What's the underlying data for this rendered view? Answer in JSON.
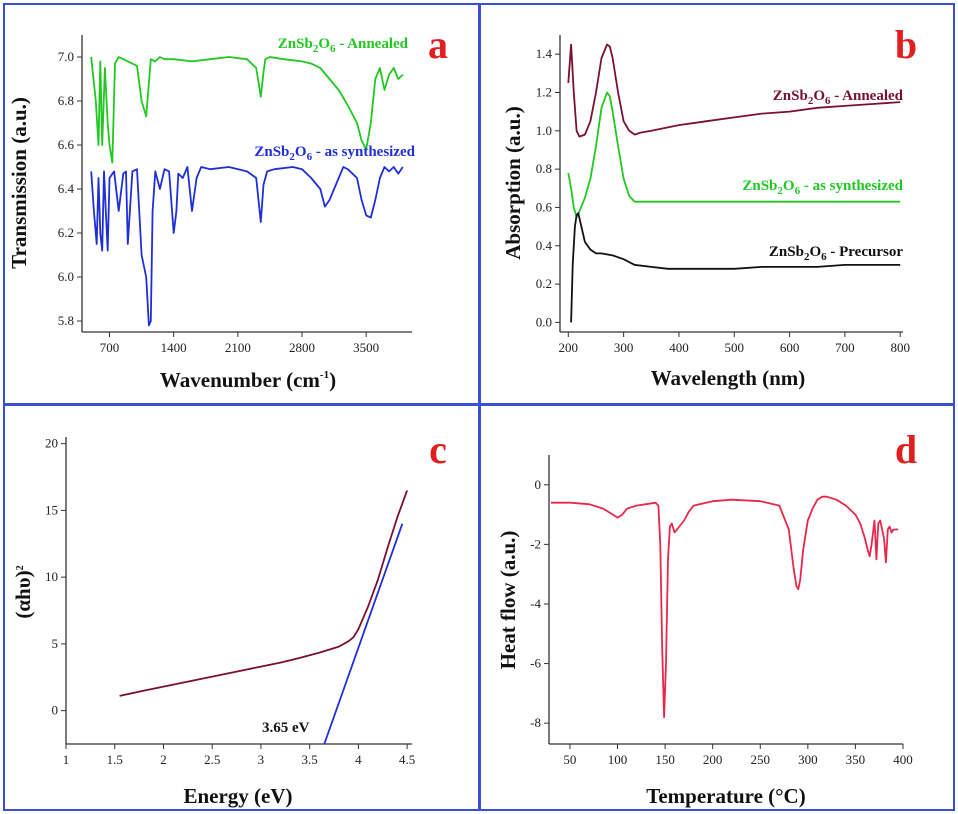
{
  "colors": {
    "border": "#3b4fd6",
    "letter": "#e02020",
    "green": "#22c722",
    "blue": "#1f2fd8",
    "maroon": "#7a1030",
    "black": "#111111",
    "red": "#e8284a"
  },
  "chart_data": [
    {
      "id": "a",
      "letter": "a",
      "type": "line",
      "xlabel": "Wavenumber (cm",
      "xlabel_sup": "-1",
      "xlabel_end": ")",
      "ylabel": "Transmission (a.u.)",
      "xlim": [
        400,
        4000
      ],
      "ylim": [
        5.75,
        7.1
      ],
      "xticks": [
        700,
        1400,
        2100,
        2800,
        3500
      ],
      "yticks": [
        5.8,
        6.0,
        6.2,
        6.4,
        6.6,
        6.8,
        7.0
      ],
      "series": [
        {
          "name": "ZnSb2O6 - Annealed",
          "label_parts": [
            "ZnSb",
            "2",
            "O",
            "6",
            " - Annealed"
          ],
          "color": "#22c722",
          "x": [
            500,
            550,
            580,
            600,
            620,
            650,
            680,
            700,
            730,
            760,
            800,
            850,
            900,
            1000,
            1050,
            1100,
            1150,
            1200,
            1250,
            1300,
            1400,
            1600,
            1800,
            2000,
            2200,
            2300,
            2350,
            2380,
            2400,
            2450,
            2600,
            2800,
            2900,
            3000,
            3100,
            3200,
            3300,
            3400,
            3450,
            3500,
            3550,
            3600,
            3650,
            3700,
            3750,
            3800,
            3850,
            3900
          ],
          "y": [
            7.0,
            6.8,
            6.6,
            6.98,
            6.6,
            6.95,
            6.7,
            6.6,
            6.52,
            6.97,
            7.0,
            6.99,
            6.98,
            6.96,
            6.8,
            6.73,
            6.99,
            6.98,
            7.0,
            6.99,
            6.99,
            6.98,
            6.99,
            7.0,
            6.99,
            6.95,
            6.82,
            6.93,
            6.99,
            7.0,
            6.99,
            6.98,
            6.97,
            6.95,
            6.9,
            6.85,
            6.78,
            6.7,
            6.62,
            6.58,
            6.7,
            6.9,
            6.95,
            6.85,
            6.92,
            6.95,
            6.9,
            6.92
          ]
        },
        {
          "name": "ZnSb2O6 - as synthesized",
          "label_parts": [
            "ZnSb",
            "2",
            "O",
            "6",
            " - as synthesized"
          ],
          "color": "#1f2fd8",
          "x": [
            500,
            530,
            560,
            580,
            600,
            620,
            640,
            660,
            680,
            700,
            750,
            800,
            850,
            880,
            900,
            950,
            1000,
            1050,
            1100,
            1130,
            1150,
            1170,
            1200,
            1250,
            1300,
            1350,
            1400,
            1430,
            1450,
            1500,
            1550,
            1600,
            1650,
            1700,
            1800,
            2000,
            2200,
            2300,
            2350,
            2380,
            2420,
            2500,
            2700,
            2800,
            2900,
            3000,
            3050,
            3100,
            3150,
            3200,
            3250,
            3300,
            3400,
            3450,
            3500,
            3550,
            3600,
            3650,
            3700,
            3750,
            3800,
            3850,
            3900
          ],
          "y": [
            6.48,
            6.3,
            6.15,
            6.45,
            6.2,
            6.12,
            6.48,
            6.3,
            6.12,
            6.45,
            6.48,
            6.3,
            6.47,
            6.48,
            6.15,
            6.48,
            6.49,
            6.1,
            6.0,
            5.78,
            5.8,
            6.3,
            6.48,
            6.4,
            6.49,
            6.48,
            6.2,
            6.3,
            6.47,
            6.45,
            6.5,
            6.3,
            6.45,
            6.5,
            6.49,
            6.5,
            6.48,
            6.45,
            6.25,
            6.42,
            6.48,
            6.49,
            6.5,
            6.49,
            6.45,
            6.4,
            6.32,
            6.35,
            6.4,
            6.45,
            6.5,
            6.49,
            6.45,
            6.35,
            6.28,
            6.27,
            6.35,
            6.45,
            6.5,
            6.48,
            6.5,
            6.47,
            6.5
          ]
        }
      ]
    },
    {
      "id": "b",
      "letter": "b",
      "type": "line",
      "xlabel": "Wavelength (nm)",
      "ylabel": "Absorption (a.u.)",
      "xlim": [
        185,
        805
      ],
      "ylim": [
        -0.05,
        1.5
      ],
      "xticks": [
        200,
        300,
        400,
        500,
        600,
        700,
        800
      ],
      "yticks": [
        0.0,
        0.2,
        0.4,
        0.6,
        0.8,
        1.0,
        1.2,
        1.4
      ],
      "series": [
        {
          "name": "ZnSb2O6 - Annealed",
          "label_parts": [
            "ZnSb",
            "2",
            "O",
            "6",
            " - Annealed"
          ],
          "color": "#7a1030",
          "x": [
            200,
            205,
            210,
            215,
            220,
            230,
            240,
            250,
            260,
            270,
            275,
            280,
            290,
            300,
            310,
            320,
            330,
            350,
            400,
            450,
            500,
            550,
            600,
            650,
            700,
            750,
            800
          ],
          "y": [
            1.25,
            1.45,
            1.2,
            1.0,
            0.97,
            0.98,
            1.05,
            1.2,
            1.38,
            1.45,
            1.44,
            1.38,
            1.2,
            1.05,
            1.0,
            0.98,
            0.99,
            1.0,
            1.03,
            1.05,
            1.07,
            1.09,
            1.1,
            1.12,
            1.13,
            1.14,
            1.15
          ]
        },
        {
          "name": "ZnSb2O6 - as synthesized",
          "label_parts": [
            "ZnSb",
            "2",
            "O",
            "6",
            " - as synthesized"
          ],
          "color": "#22c722",
          "x": [
            200,
            205,
            210,
            215,
            220,
            230,
            240,
            250,
            260,
            270,
            275,
            280,
            290,
            300,
            310,
            320,
            330,
            400,
            500,
            600,
            700,
            800
          ],
          "y": [
            0.78,
            0.7,
            0.6,
            0.55,
            0.58,
            0.65,
            0.75,
            0.92,
            1.12,
            1.2,
            1.18,
            1.1,
            0.92,
            0.75,
            0.66,
            0.63,
            0.63,
            0.63,
            0.63,
            0.63,
            0.63,
            0.63
          ]
        },
        {
          "name": "ZnSb2O6 - Precursor",
          "label_parts": [
            "ZnSb",
            "2",
            "O",
            "6",
            " - Precursor"
          ],
          "color": "#111111",
          "x": [
            205,
            208,
            212,
            215,
            218,
            222,
            230,
            240,
            250,
            260,
            280,
            300,
            320,
            350,
            380,
            400,
            450,
            500,
            550,
            600,
            650,
            700,
            750,
            800
          ],
          "y": [
            0.0,
            0.3,
            0.5,
            0.56,
            0.57,
            0.52,
            0.42,
            0.38,
            0.36,
            0.36,
            0.35,
            0.33,
            0.3,
            0.29,
            0.28,
            0.28,
            0.28,
            0.28,
            0.29,
            0.29,
            0.29,
            0.3,
            0.3,
            0.3
          ]
        }
      ]
    },
    {
      "id": "c",
      "letter": "c",
      "type": "line",
      "xlabel": "Energy (eV)",
      "ylabel": "(αhυ)",
      "ylabel_sup": "2",
      "xlim": [
        1.0,
        4.55
      ],
      "ylim": [
        -2.5,
        20.5
      ],
      "xticks": [
        1.0,
        1.5,
        2.0,
        2.5,
        3.0,
        3.5,
        4.0,
        4.5
      ],
      "yticks": [
        0,
        5,
        10,
        15,
        20
      ],
      "annotation": "3.65 eV",
      "series": [
        {
          "name": "",
          "color": "#7a1030",
          "x": [
            1.55,
            1.8,
            2.0,
            2.2,
            2.5,
            2.8,
            3.0,
            3.2,
            3.4,
            3.6,
            3.8,
            3.9,
            3.95,
            4.0,
            4.1,
            4.2,
            4.3,
            4.4,
            4.5
          ],
          "y": [
            1.1,
            1.5,
            1.8,
            2.1,
            2.55,
            3.0,
            3.3,
            3.6,
            3.95,
            4.35,
            4.8,
            5.2,
            5.5,
            6.1,
            7.8,
            9.8,
            12.2,
            14.5,
            16.5
          ]
        },
        {
          "name": "",
          "color": "#1f2fd8",
          "x": [
            3.65,
            4.45
          ],
          "y": [
            -2.5,
            14.0
          ]
        }
      ]
    },
    {
      "id": "d",
      "letter": "d",
      "type": "line",
      "xlabel": "Temperature (°C)",
      "ylabel": "Heat flow (a.u.)",
      "xlim": [
        28,
        400
      ],
      "ylim": [
        -8.7,
        1.0
      ],
      "xticks": [
        50,
        100,
        150,
        200,
        250,
        300,
        350,
        400
      ],
      "yticks": [
        0,
        -2,
        -4,
        -6,
        -8
      ],
      "series": [
        {
          "name": "",
          "color": "#e8284a",
          "x": [
            30,
            50,
            70,
            85,
            95,
            100,
            105,
            110,
            120,
            130,
            140,
            143,
            145,
            147,
            149,
            151,
            153,
            155,
            157,
            160,
            165,
            170,
            175,
            180,
            200,
            220,
            250,
            270,
            280,
            285,
            288,
            290,
            292,
            295,
            300,
            305,
            310,
            315,
            320,
            330,
            340,
            350,
            355,
            360,
            363,
            365,
            367,
            370,
            372,
            374,
            376,
            378,
            380,
            382,
            384,
            386,
            388,
            390,
            395
          ],
          "y": [
            -0.6,
            -0.6,
            -0.65,
            -0.8,
            -1.0,
            -1.1,
            -1.0,
            -0.8,
            -0.7,
            -0.65,
            -0.6,
            -0.7,
            -2.0,
            -5.5,
            -7.8,
            -6.0,
            -2.5,
            -1.4,
            -1.3,
            -1.6,
            -1.4,
            -1.2,
            -0.9,
            -0.7,
            -0.55,
            -0.5,
            -0.55,
            -0.7,
            -1.5,
            -2.8,
            -3.4,
            -3.5,
            -3.2,
            -2.2,
            -1.2,
            -0.8,
            -0.5,
            -0.4,
            -0.4,
            -0.5,
            -0.7,
            -1.0,
            -1.3,
            -1.8,
            -2.2,
            -2.4,
            -2.0,
            -1.2,
            -2.5,
            -1.3,
            -1.2,
            -1.5,
            -1.8,
            -2.6,
            -1.5,
            -1.4,
            -1.6,
            -1.5,
            -1.5
          ]
        }
      ]
    }
  ]
}
